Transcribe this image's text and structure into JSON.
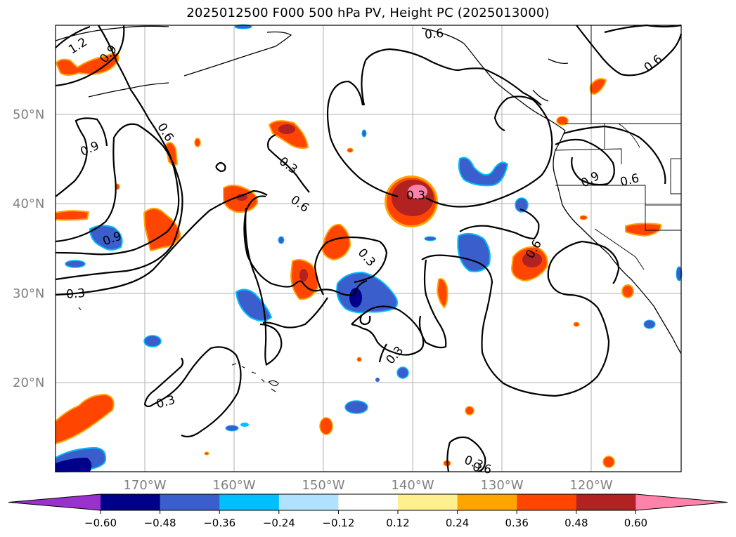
{
  "title": "2025012500 F000 500 hPa PV, Height PC (2025013000)",
  "map": {
    "lat_labels": [
      "50°N",
      "40°N",
      "30°N",
      "20°N"
    ],
    "lon_labels": [
      "170°W",
      "160°W",
      "150°W",
      "140°W",
      "130°W",
      "120°W"
    ],
    "contour_labels": [
      "1.2",
      "0.9",
      "0.6",
      "0.6",
      "0.6",
      "0.9",
      "0.6",
      "0.3",
      "0.6",
      "0.3",
      "0.9",
      "0.3",
      "0.3",
      "0.3",
      "0.6",
      "0.3",
      "0.3",
      "0.9",
      "0.6"
    ]
  },
  "colorbar": {
    "ticks": [
      "−0.60",
      "−0.48",
      "−0.36",
      "−0.24",
      "−0.12",
      "0.12",
      "0.24",
      "0.36",
      "0.48",
      "0.60"
    ],
    "colors": [
      "#9932cc",
      "#00008b",
      "#3a5fcd",
      "#00bfff",
      "#b0e2ff",
      "#ffffff",
      "#fff08f",
      "#ffa500",
      "#ff4500",
      "#b22222",
      "#ff82ab"
    ]
  }
}
